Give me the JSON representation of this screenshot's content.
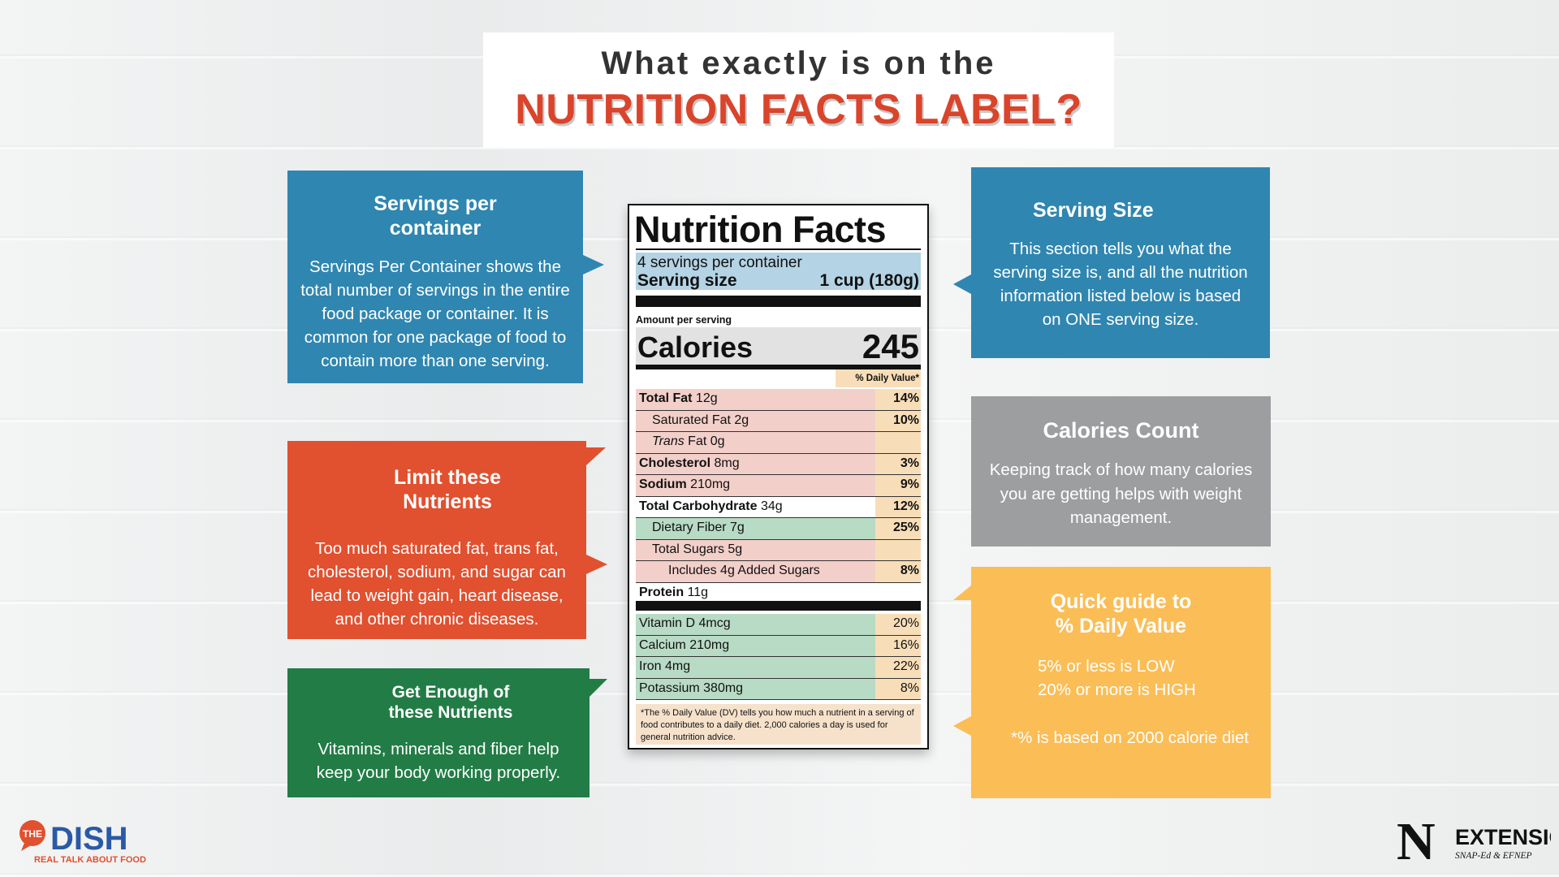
{
  "title": {
    "line1": "What exactly is on the",
    "line2": "NUTRITION FACTS LABEL?"
  },
  "callouts": {
    "servings": {
      "heading": "Servings per container",
      "body": "Servings Per Container shows the total number of servings in the entire food package or container. It is common for one package of food to contain more than one serving."
    },
    "limit": {
      "heading": "Limit these Nutrients",
      "body": "Too much saturated fat, trans fat, cholesterol, sodium, and sugar can lead to weight gain, heart disease, and other chronic diseases."
    },
    "enough": {
      "heading": "Get Enough of these Nutrients",
      "body": "Vitamins, minerals and fiber help keep your body working properly."
    },
    "serving_size": {
      "heading": "Serving Size",
      "body": "This section tells you what the serving size is, and all the nutrition information listed below is based on ONE serving size."
    },
    "calories": {
      "heading": "Calories Count",
      "body": "Keeping track of how many calories you are getting helps with weight management."
    },
    "dv": {
      "heading": "Quick guide to % Daily Value",
      "low": "5% or less is LOW",
      "high": "20% or more is HIGH",
      "note": "*% is based on 2000 calorie diet"
    }
  },
  "label": {
    "title": "Nutrition Facts",
    "servings_per_container": "4 servings per container",
    "serving_size_label": "Serving size",
    "serving_size_value": "1 cup (180g)",
    "amount_per_serving": "Amount per serving",
    "calories_label": "Calories",
    "calories_value": "245",
    "dv_header": "% Daily Value*",
    "rows": [
      {
        "bold": "Total Fat",
        "rest": " 12g",
        "pct": "14%"
      },
      {
        "bold": "",
        "rest": "Saturated Fat 2g",
        "pct": "10%"
      },
      {
        "italic": "Trans",
        "rest": " Fat 0g",
        "pct": ""
      },
      {
        "bold": "Cholesterol",
        "rest": " 8mg",
        "pct": "3%"
      },
      {
        "bold": "Sodium",
        "rest": " 210mg",
        "pct": "9%"
      },
      {
        "bold": "Total Carbohydrate",
        "rest": " 34g",
        "pct": "12%"
      },
      {
        "bold": "",
        "rest": "Dietary Fiber 7g",
        "pct": "25%"
      },
      {
        "bold": "",
        "rest": "Total Sugars 5g",
        "pct": ""
      },
      {
        "bold": "",
        "rest": "Includes 4g Added Sugars",
        "pct": "8%"
      },
      {
        "bold": "Protein",
        "rest": " 11g",
        "pct": ""
      }
    ],
    "vitamins": [
      {
        "name": "Vitamin D 4mcg",
        "pct": "20%"
      },
      {
        "name": "Calcium 210mg",
        "pct": "16%"
      },
      {
        "name": "Iron 4mg",
        "pct": "22%"
      },
      {
        "name": "Potassium 380mg",
        "pct": "8%"
      }
    ],
    "footnote": "*The % Daily Value (DV) tells you how much a nutrient in a serving of food contributes to a daily diet. 2,000 calories a day is used for general nutrition advice."
  },
  "logos": {
    "dish_small": "THE",
    "dish_big": "DISH",
    "dish_tagline": "REAL TALK ABOUT FOOD",
    "ext_letter": "N",
    "ext_name": "EXTENSION",
    "ext_sub": "SNAP-Ed & EFNEP"
  },
  "colors": {
    "blue": "#2f86b0",
    "red": "#e1502f",
    "green": "#227c46",
    "grey": "#9d9ea0",
    "yellow": "#fbbd55"
  }
}
